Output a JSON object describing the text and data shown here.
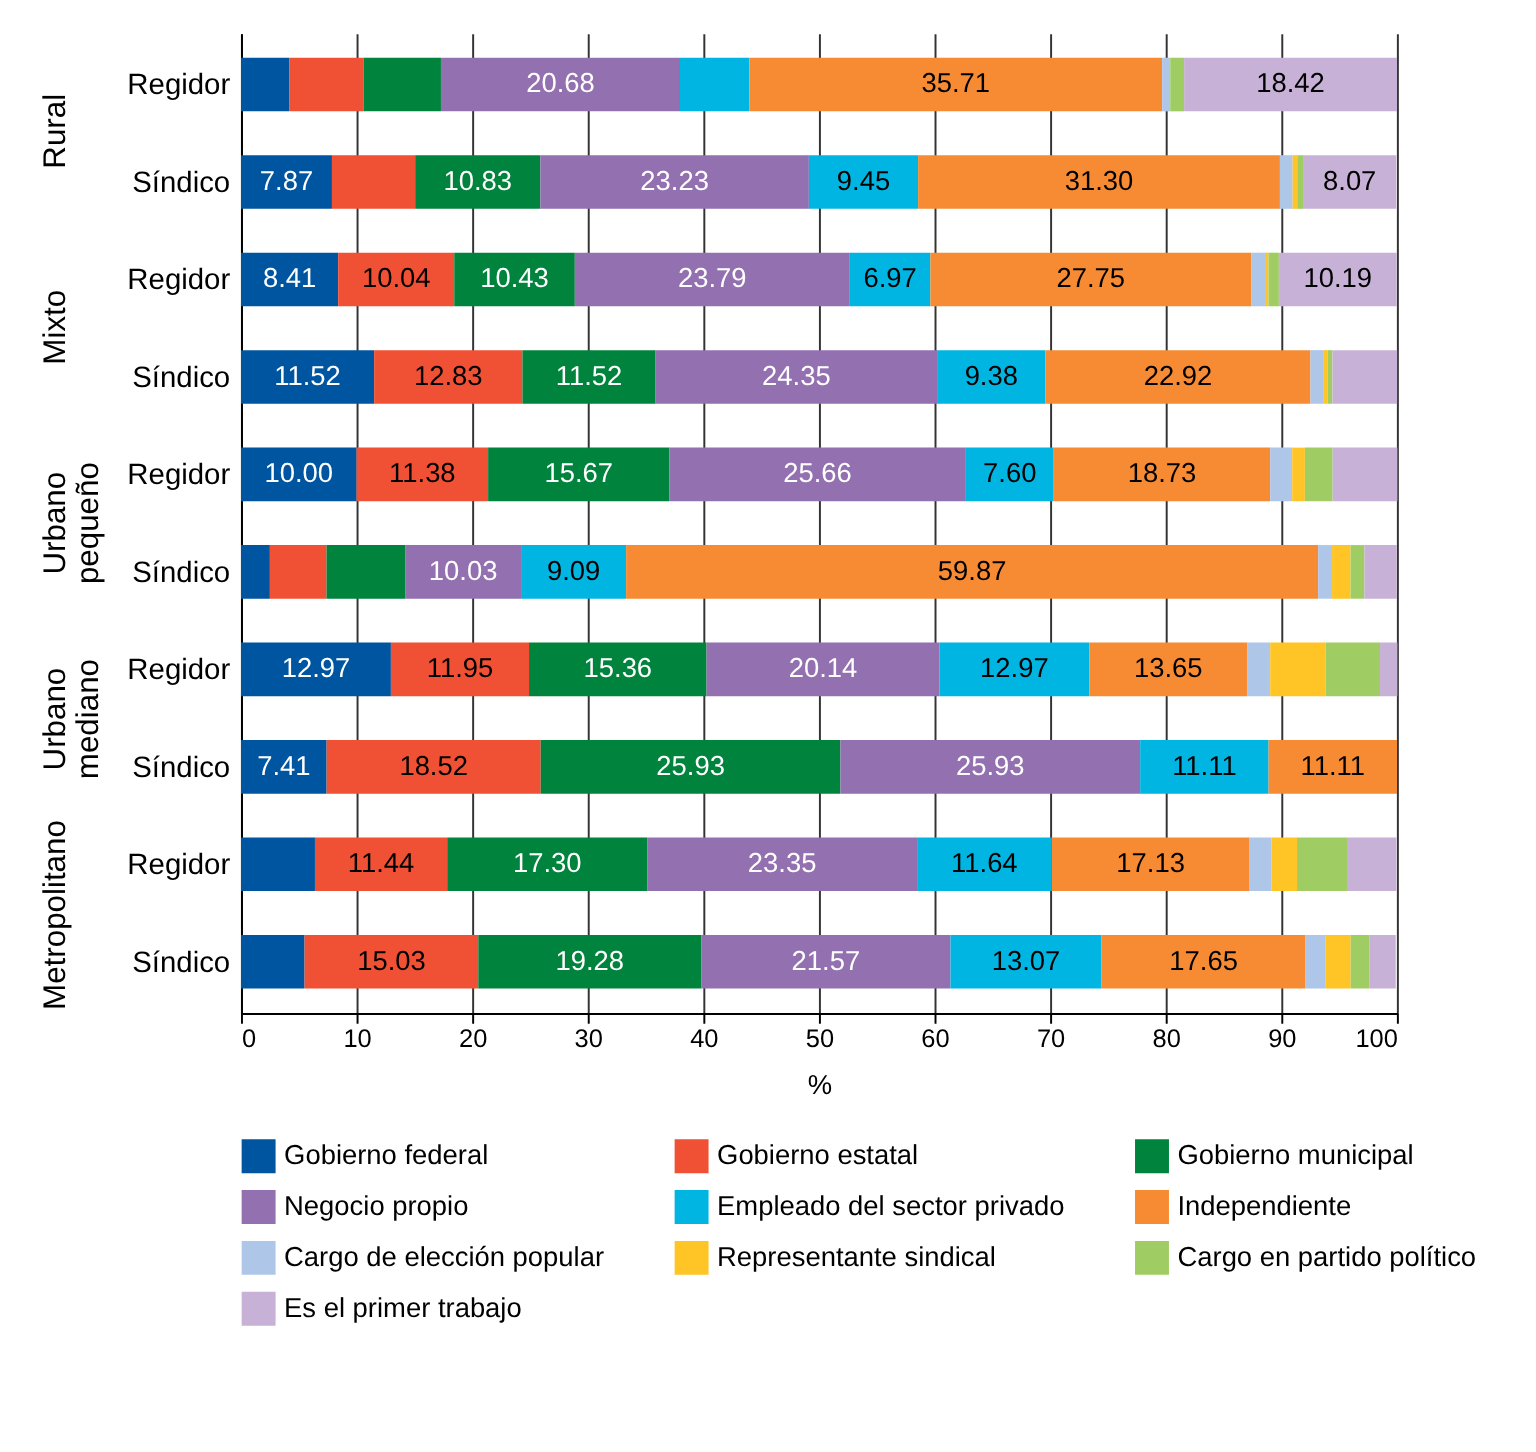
{
  "chart_data": {
    "type": "bar",
    "orientation": "horizontal",
    "stacked": true,
    "xlabel": "%",
    "xlim": [
      0,
      100
    ],
    "xticks": [
      0,
      10,
      20,
      30,
      40,
      50,
      60,
      70,
      80,
      90,
      100
    ],
    "grid": "x",
    "legend": "bottom",
    "categories": [
      "Regidor",
      "Síndico",
      "Regidor",
      "Síndico",
      "Regidor",
      "Síndico",
      "Regidor",
      "Síndico",
      "Regidor",
      "Síndico"
    ],
    "annotations": [
      "Rural",
      "Mixto",
      "Urbano pequeño",
      "Urbano mediano",
      "Metropolitano"
    ],
    "series": [
      {
        "name": "Gobierno federal",
        "color": "#0055a0",
        "values": [
          4.2,
          7.87,
          8.41,
          11.52,
          10.0,
          2.5,
          12.97,
          7.41,
          6.4,
          5.5
        ],
        "value_labels": [
          null,
          "7.87",
          "8.41",
          "11.52",
          "10.00",
          null,
          "12.97",
          "7.41",
          null,
          null
        ]
      },
      {
        "name": "Gobierno estatal",
        "color": "#f05033",
        "values": [
          6.4,
          7.2,
          10.04,
          12.83,
          11.38,
          4.9,
          11.95,
          18.52,
          11.44,
          15.03
        ],
        "value_labels": [
          null,
          null,
          "10.04",
          "12.83",
          "11.38",
          null,
          "11.95",
          "18.52",
          "11.44",
          "15.03"
        ]
      },
      {
        "name": "Gobierno municipal",
        "color": "#00843d",
        "values": [
          6.7,
          10.83,
          10.43,
          11.52,
          15.67,
          6.8,
          15.36,
          25.93,
          17.3,
          19.28
        ],
        "value_labels": [
          null,
          "10.83",
          "10.43",
          "11.52",
          "15.67",
          null,
          "15.36",
          "25.93",
          "17.30",
          "19.28"
        ]
      },
      {
        "name": "Negocio  propio",
        "color": "#9370b0",
        "values": [
          20.68,
          23.23,
          23.79,
          24.35,
          25.66,
          10.03,
          20.14,
          25.93,
          23.35,
          21.57
        ],
        "value_labels": [
          "20.68",
          "23.23",
          "23.79",
          "24.35",
          "25.66",
          "10.03",
          "20.14",
          "25.93",
          "23.35",
          "21.57"
        ]
      },
      {
        "name": "Empleado del sector privado",
        "color": "#00b5e2",
        "values": [
          6.0,
          9.45,
          6.97,
          9.38,
          7.6,
          9.09,
          12.97,
          11.11,
          11.64,
          13.07
        ],
        "value_labels": [
          null,
          "9.45",
          "6.97",
          "9.38",
          "7.60",
          "9.09",
          "12.97",
          "11.11",
          "11.64",
          "13.07"
        ]
      },
      {
        "name": "Independiente",
        "color": "#f68b33",
        "values": [
          35.71,
          31.3,
          27.75,
          22.92,
          18.73,
          59.87,
          13.65,
          11.11,
          17.13,
          17.65
        ],
        "value_labels": [
          "35.71",
          "31.30",
          "27.75",
          "22.92",
          "18.73",
          "59.87",
          "13.65",
          "11.11",
          "17.13",
          "17.65"
        ]
      },
      {
        "name": "Cargo de elección popular",
        "color": "#aec6e8",
        "values": [
          0.7,
          1.1,
          1.2,
          1.1,
          1.9,
          1.2,
          2.0,
          0,
          1.9,
          1.7
        ]
      },
      {
        "name": "Representante sindical",
        "color": "#ffc425",
        "values": [
          0,
          0.4,
          0.3,
          0.4,
          1.1,
          1.6,
          4.8,
          0,
          2.2,
          2.2
        ]
      },
      {
        "name": "Cargo en partido político",
        "color": "#a0cd63",
        "values": [
          1.2,
          0.5,
          0.9,
          0.4,
          2.4,
          1.2,
          4.7,
          0,
          4.4,
          1.6
        ]
      },
      {
        "name": "Es el primer trabajo",
        "color": "#c8b1d6",
        "values": [
          18.42,
          8.07,
          10.19,
          5.6,
          5.6,
          2.8,
          1.5,
          0,
          4.2,
          2.3
        ],
        "value_labels": [
          "18.42",
          "8.07",
          "10.19",
          null,
          null,
          null,
          null,
          null,
          null,
          null
        ]
      }
    ]
  }
}
